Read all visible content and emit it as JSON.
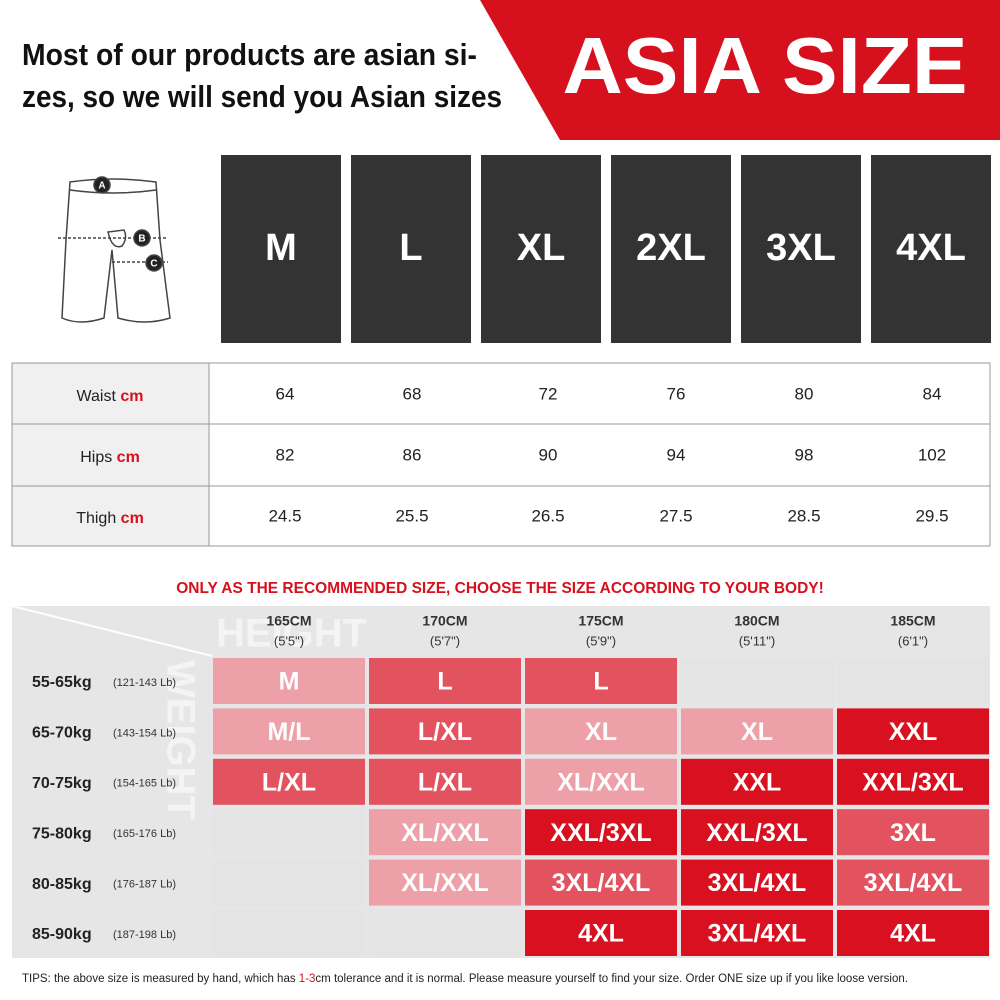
{
  "header": {
    "line1": "Most of our products are asian si-",
    "line2": "zes, so we will send you Asian sizes",
    "badge": "ASIA SIZE"
  },
  "diagram": {
    "labels": [
      "A",
      "B",
      "C"
    ]
  },
  "sizes": [
    "M",
    "L",
    "XL",
    "2XL",
    "3XL",
    "4XL"
  ],
  "measurements": {
    "rows": [
      {
        "label": "Waist",
        "unit": "cm",
        "values": [
          "64",
          "68",
          "72",
          "76",
          "80",
          "84"
        ]
      },
      {
        "label": "Hips",
        "unit": "cm",
        "values": [
          "82",
          "86",
          "90",
          "94",
          "98",
          "102"
        ]
      },
      {
        "label": "Thigh",
        "unit": "cm",
        "values": [
          "24.5",
          "25.5",
          "26.5",
          "27.5",
          "28.5",
          "29.5"
        ]
      }
    ]
  },
  "notice": "ONLY AS THE RECOMMENDED SIZE, CHOOSE THE SIZE ACCORDING TO YOUR BODY!",
  "recommend": {
    "height_watermark": "HEIGHT",
    "weight_watermark": "WEIGHT",
    "heights": [
      {
        "cm": "165CM",
        "ft": "(5'5\")"
      },
      {
        "cm": "170CM",
        "ft": "(5'7\")"
      },
      {
        "cm": "175CM",
        "ft": "(5'9\")"
      },
      {
        "cm": "180CM",
        "ft": "(5'11\")"
      },
      {
        "cm": "185CM",
        "ft": "(6'1\")"
      }
    ],
    "rows": [
      {
        "kg": "55-65kg",
        "lb": "(121-143 Lb)",
        "cells": [
          "M",
          "L",
          "L",
          null,
          null
        ],
        "colors": [
          "#eea0a8",
          "#e2535f",
          "#e2535f",
          "#e4e4e4",
          "#e4e4e4"
        ]
      },
      {
        "kg": "65-70kg",
        "lb": "(143-154 Lb)",
        "cells": [
          "M/L",
          "L/XL",
          "XL",
          "XL",
          "XXL"
        ],
        "colors": [
          "#eea0a8",
          "#e2535f",
          "#eea0a8",
          "#eea0a8",
          "#d81020"
        ]
      },
      {
        "kg": "70-75kg",
        "lb": "(154-165 Lb)",
        "cells": [
          "L/XL",
          "L/XL",
          "XL/XXL",
          "XXL",
          "XXL/3XL"
        ],
        "colors": [
          "#e2535f",
          "#e2535f",
          "#eea0a8",
          "#d81020",
          "#d81020"
        ]
      },
      {
        "kg": "75-80kg",
        "lb": "(165-176 Lb)",
        "cells": [
          null,
          "XL/XXL",
          "XXL/3XL",
          "XXL/3XL",
          "3XL"
        ],
        "colors": [
          "#e4e4e4",
          "#eea0a8",
          "#d81020",
          "#d81020",
          "#e2535f"
        ]
      },
      {
        "kg": "80-85kg",
        "lb": "(176-187 Lb)",
        "cells": [
          null,
          "XL/XXL",
          "3XL/4XL",
          "3XL/4XL",
          "3XL/4XL"
        ],
        "colors": [
          "#e4e4e4",
          "#eea0a8",
          "#e2535f",
          "#d81020",
          "#e2535f"
        ]
      },
      {
        "kg": "85-90kg",
        "lb": "(187-198 Lb)",
        "cells": [
          null,
          null,
          "4XL",
          "3XL/4XL",
          "4XL"
        ],
        "colors": [
          "#e4e4e4",
          "#e4e4e4",
          "#d81020",
          "#d81020",
          "#d81020"
        ]
      }
    ]
  },
  "tips": {
    "before": "TIPS:  the above size is measured by hand, which has ",
    "highlight": "1-3",
    "after": "cm tolerance and it is normal. Please measure yourself to find your size. Order ONE size up if you like loose version."
  }
}
